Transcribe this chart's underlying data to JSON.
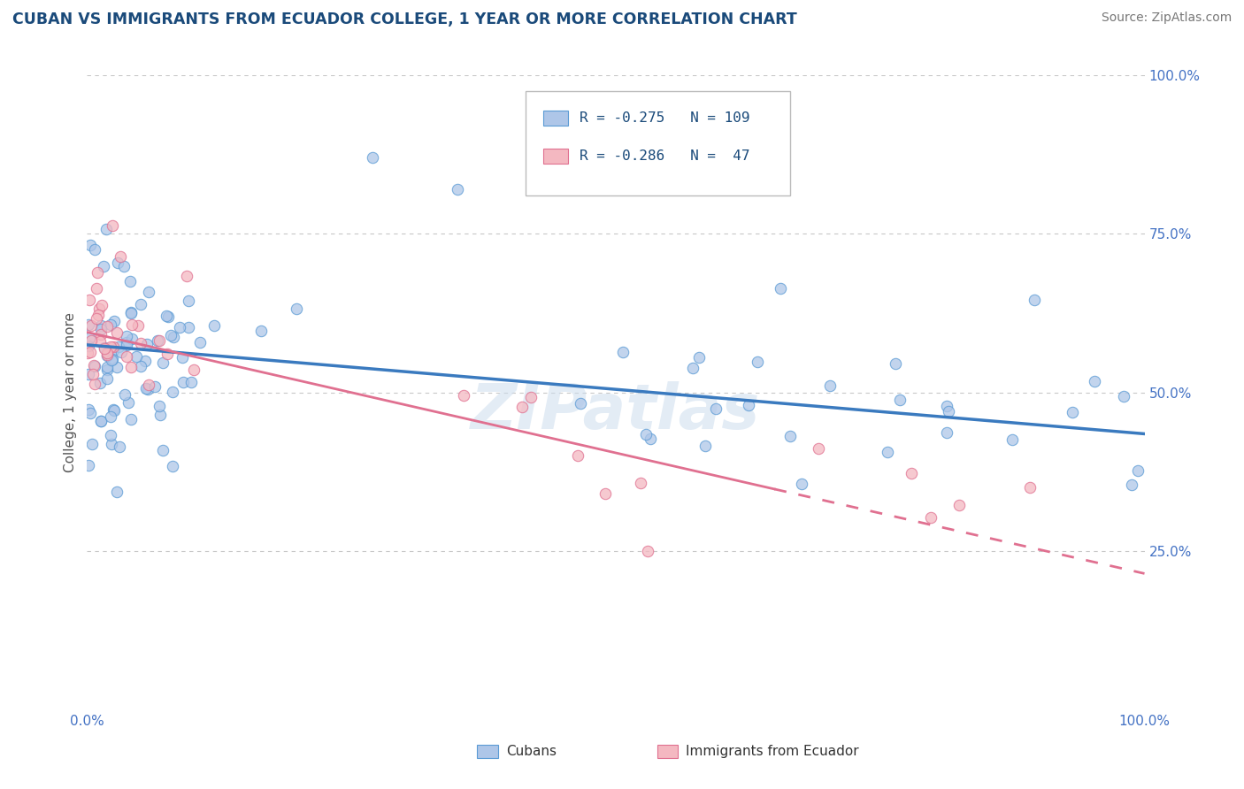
{
  "title": "CUBAN VS IMMIGRANTS FROM ECUADOR COLLEGE, 1 YEAR OR MORE CORRELATION CHART",
  "source_text": "Source: ZipAtlas.com",
  "ylabel": "College, 1 year or more",
  "xlim": [
    0.0,
    1.0
  ],
  "ylim": [
    0.0,
    1.0
  ],
  "y_tick_positions": [
    0.25,
    0.5,
    0.75,
    1.0
  ],
  "y_tick_labels": [
    "25.0%",
    "50.0%",
    "75.0%",
    "100.0%"
  ],
  "legend_R1": "-0.275",
  "legend_N1": "109",
  "legend_R2": "-0.286",
  "legend_N2": " 47",
  "legend_label1": "Cubans",
  "legend_label2": "Immigrants from Ecuador",
  "color_cubans_fill": "#aec6e8",
  "color_cubans_edge": "#5b9bd5",
  "color_ecuador_fill": "#f4b8c1",
  "color_ecuador_edge": "#e07090",
  "color_line_cubans": "#3a7abf",
  "color_line_ecuador": "#e07090",
  "background_color": "#ffffff",
  "grid_color": "#c8c8c8",
  "watermark_text": "ZIPatlas",
  "title_color": "#1a4a7a",
  "source_color": "#777777",
  "tick_color": "#4472c4",
  "ylabel_color": "#555555",
  "cubans_line_start_y": 0.575,
  "cubans_line_end_y": 0.435,
  "ecuador_line_start_y": 0.595,
  "ecuador_line_end_y": 0.215
}
